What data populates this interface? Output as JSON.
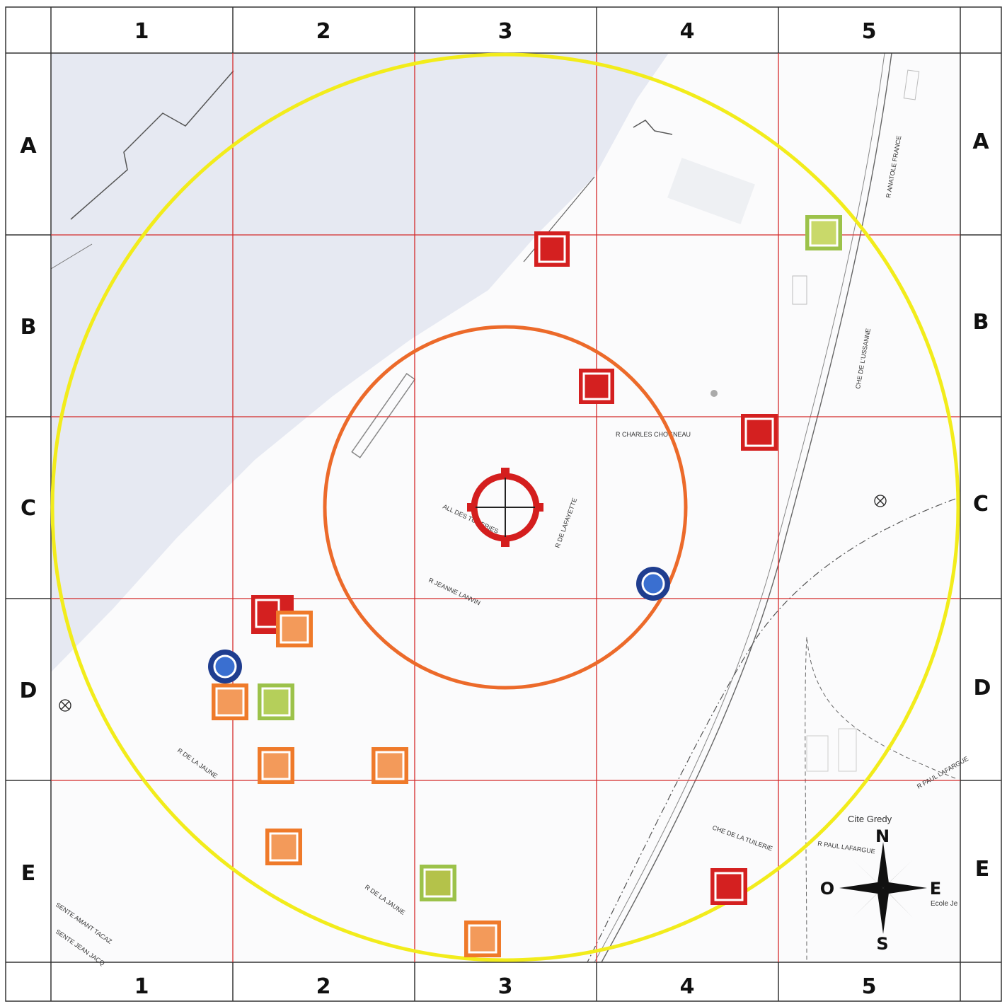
{
  "grid": {
    "columns": [
      "1",
      "2",
      "3",
      "4",
      "5"
    ],
    "rows": [
      "A",
      "B",
      "C",
      "D",
      "E"
    ]
  },
  "streets": {
    "charles": "R CHARLES CHOGNEAU",
    "allee": "ALL DES TUILERIES",
    "lafayette": "R DE LAFAYETTE",
    "jeanne": "R JEANNE LANVIN",
    "lajaune1": "R DE LA JAUNE",
    "lajaune2": "R DE LA JAUNE",
    "chetuilerie": "CHE DE LA TUILERIE",
    "usanne": "CHE DE L'USSANNE",
    "lafargue": "R PAUL LAFARGUE",
    "lafargue2": "R PAUL LAFARGUE",
    "anatole": "R ANATOLE FRANCE",
    "sentejean": "SENTE JEAN JACQ",
    "sentesaint": "SENTE AMANT TACAZ",
    "ecole": "Ecole Je",
    "cite": "Cite Gredy"
  },
  "compass": {
    "north": "N",
    "south": "S",
    "east": "E",
    "west": "O"
  },
  "markers": [
    {
      "kind": "red",
      "cell": "B3"
    },
    {
      "kind": "red",
      "cell": "B3-C3"
    },
    {
      "kind": "red",
      "cell": "C4"
    },
    {
      "kind": "red",
      "cell": "D2"
    },
    {
      "kind": "red",
      "cell": "E4"
    },
    {
      "kind": "green",
      "cell": "A5-B5"
    },
    {
      "kind": "green",
      "cell": "D2"
    },
    {
      "kind": "green",
      "cell": "E3"
    },
    {
      "kind": "orange",
      "cell": "D2"
    },
    {
      "kind": "orange",
      "cell": "D2"
    },
    {
      "kind": "orange",
      "cell": "D2"
    },
    {
      "kind": "orange",
      "cell": "D3"
    },
    {
      "kind": "orange",
      "cell": "E2"
    },
    {
      "kind": "orange",
      "cell": "E3"
    },
    {
      "kind": "blue-circle",
      "cell": "D2"
    },
    {
      "kind": "blue-circle",
      "cell": "C4-D4"
    }
  ],
  "colors": {
    "grid_line": "#d42a2a",
    "outer_ring": "#f2ec1b",
    "inner_ring": "#ec6a2a",
    "target": "#d41e1e",
    "red_marker": "#d42020",
    "orange_marker": "#ef7a2a",
    "green_marker": "#9cc24a",
    "blue_marker": "#1f3d8f",
    "water": "#e6e9f2"
  }
}
